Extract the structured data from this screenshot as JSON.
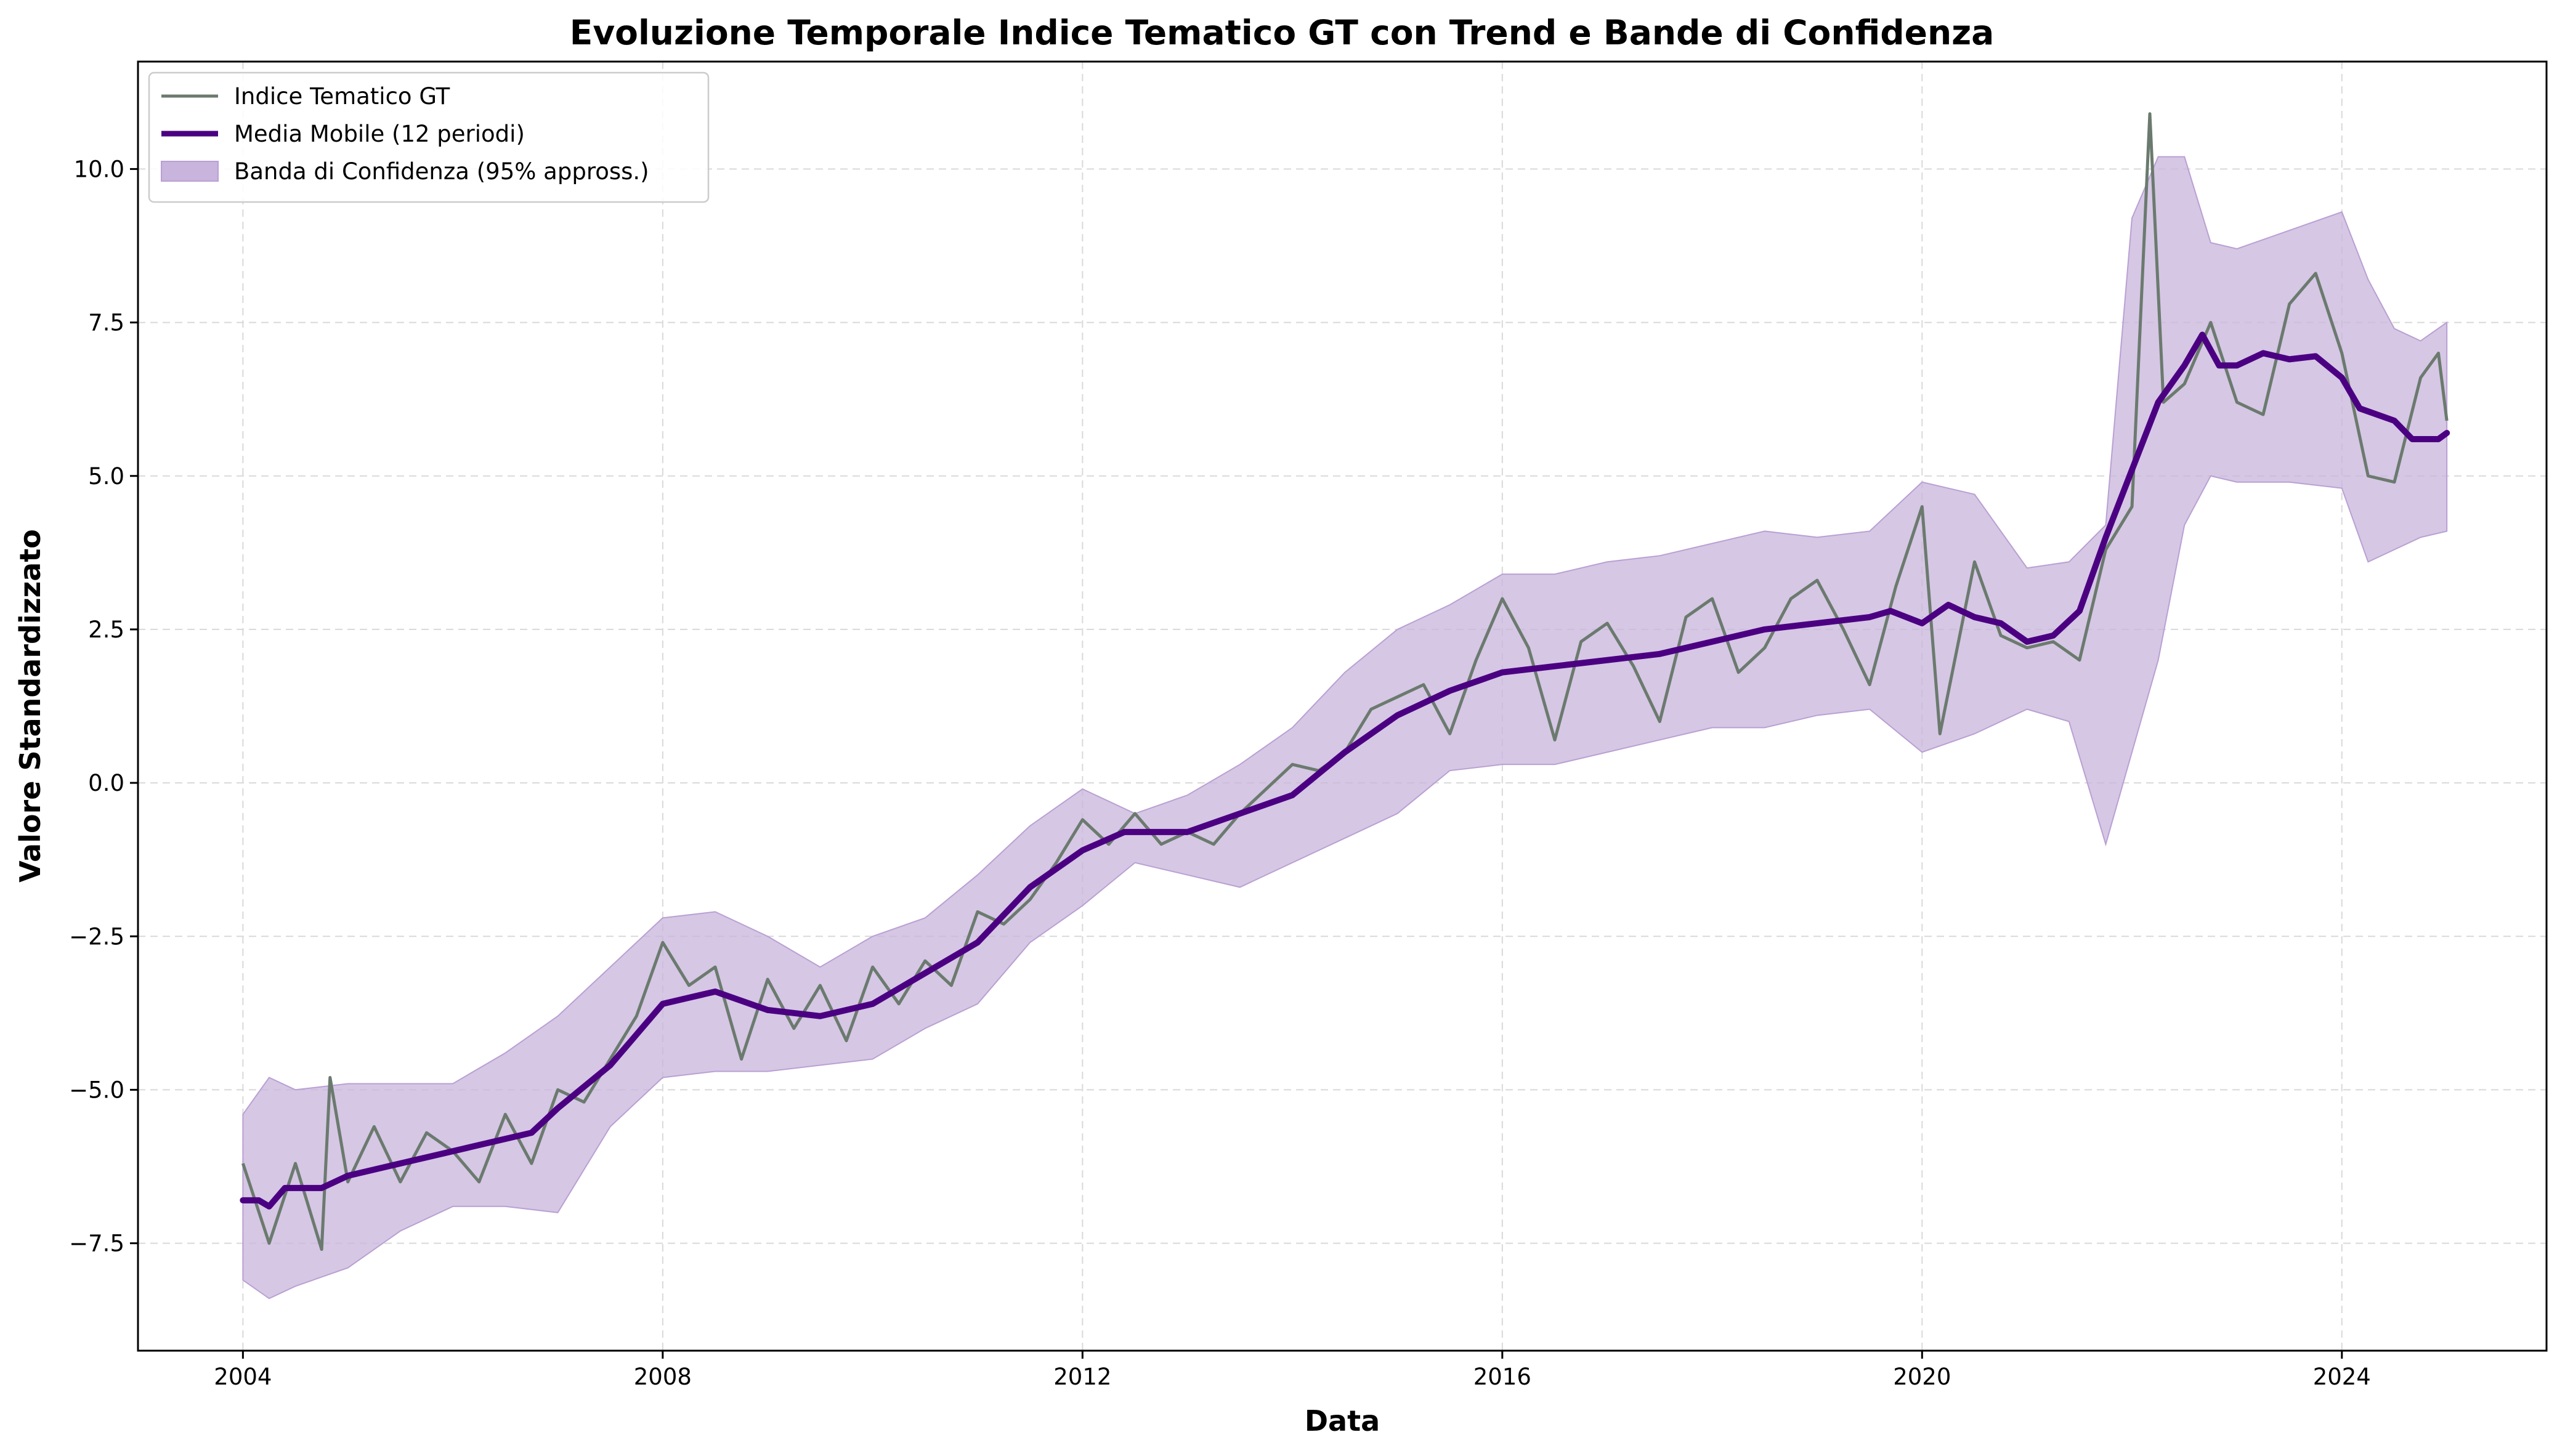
{
  "chart_data": {
    "type": "line",
    "title": "Evoluzione Temporale Indice Tematico GT con Trend e Bande di Confidenza",
    "xlabel": "Data",
    "ylabel": "Valore Standardizzato",
    "xlim": [
      2003.0,
      2025.95
    ],
    "ylim": [
      -9.25,
      11.75
    ],
    "x_ticks": [
      2004,
      2008,
      2012,
      2016,
      2020,
      2024
    ],
    "x_tick_labels": [
      "2004",
      "2008",
      "2012",
      "2016",
      "2020",
      "2024"
    ],
    "y_ticks": [
      -7.5,
      -5.0,
      -2.5,
      0.0,
      2.5,
      5.0,
      7.5,
      10.0
    ],
    "y_tick_labels": [
      "−7.5",
      "−5.0",
      "−2.5",
      "0.0",
      "2.5",
      "5.0",
      "7.5",
      "10.0"
    ],
    "grid": true,
    "legend_position": "upper-left",
    "colors": {
      "index": "#6b7a6e",
      "moving_average": "#4b0082",
      "band_fill": "#c8b4dc",
      "band_edge": "#b9a0d2",
      "grid": "#d9d9d9"
    },
    "series": [
      {
        "name": "Indice Tematico GT",
        "style": "line",
        "points": [
          [
            2004.0,
            -6.2
          ],
          [
            2004.25,
            -7.5
          ],
          [
            2004.5,
            -6.2
          ],
          [
            2004.75,
            -7.6
          ],
          [
            2004.83,
            -4.8
          ],
          [
            2005.0,
            -6.5
          ],
          [
            2005.25,
            -5.6
          ],
          [
            2005.5,
            -6.5
          ],
          [
            2005.75,
            -5.7
          ],
          [
            2006.0,
            -6.0
          ],
          [
            2006.25,
            -6.5
          ],
          [
            2006.5,
            -5.4
          ],
          [
            2006.75,
            -6.2
          ],
          [
            2007.0,
            -5.0
          ],
          [
            2007.25,
            -5.2
          ],
          [
            2007.5,
            -4.5
          ],
          [
            2007.75,
            -3.8
          ],
          [
            2008.0,
            -2.6
          ],
          [
            2008.25,
            -3.3
          ],
          [
            2008.5,
            -3.0
          ],
          [
            2008.75,
            -4.5
          ],
          [
            2009.0,
            -3.2
          ],
          [
            2009.25,
            -4.0
          ],
          [
            2009.5,
            -3.3
          ],
          [
            2009.75,
            -4.2
          ],
          [
            2010.0,
            -3.0
          ],
          [
            2010.25,
            -3.6
          ],
          [
            2010.5,
            -2.9
          ],
          [
            2010.75,
            -3.3
          ],
          [
            2011.0,
            -2.1
          ],
          [
            2011.25,
            -2.3
          ],
          [
            2011.5,
            -1.9
          ],
          [
            2011.75,
            -1.3
          ],
          [
            2012.0,
            -0.6
          ],
          [
            2012.25,
            -1.0
          ],
          [
            2012.5,
            -0.5
          ],
          [
            2012.75,
            -1.0
          ],
          [
            2013.0,
            -0.8
          ],
          [
            2013.25,
            -1.0
          ],
          [
            2013.5,
            -0.5
          ],
          [
            2013.75,
            -0.1
          ],
          [
            2014.0,
            0.3
          ],
          [
            2014.25,
            0.2
          ],
          [
            2014.5,
            0.5
          ],
          [
            2014.75,
            1.2
          ],
          [
            2015.0,
            1.4
          ],
          [
            2015.25,
            1.6
          ],
          [
            2015.5,
            0.8
          ],
          [
            2015.75,
            2.0
          ],
          [
            2016.0,
            3.0
          ],
          [
            2016.25,
            2.2
          ],
          [
            2016.5,
            0.7
          ],
          [
            2016.75,
            2.3
          ],
          [
            2017.0,
            2.6
          ],
          [
            2017.25,
            1.9
          ],
          [
            2017.5,
            1.0
          ],
          [
            2017.75,
            2.7
          ],
          [
            2018.0,
            3.0
          ],
          [
            2018.25,
            1.8
          ],
          [
            2018.5,
            2.2
          ],
          [
            2018.75,
            3.0
          ],
          [
            2019.0,
            3.3
          ],
          [
            2019.25,
            2.5
          ],
          [
            2019.5,
            1.6
          ],
          [
            2019.75,
            3.2
          ],
          [
            2020.0,
            4.5
          ],
          [
            2020.17,
            0.8
          ],
          [
            2020.5,
            3.6
          ],
          [
            2020.75,
            2.4
          ],
          [
            2021.0,
            2.2
          ],
          [
            2021.25,
            2.3
          ],
          [
            2021.5,
            2.0
          ],
          [
            2021.75,
            3.8
          ],
          [
            2022.0,
            4.5
          ],
          [
            2022.17,
            10.9
          ],
          [
            2022.3,
            6.2
          ],
          [
            2022.5,
            6.5
          ],
          [
            2022.75,
            7.5
          ],
          [
            2023.0,
            6.2
          ],
          [
            2023.25,
            6.0
          ],
          [
            2023.5,
            7.8
          ],
          [
            2023.75,
            8.3
          ],
          [
            2024.0,
            7.0
          ],
          [
            2024.25,
            5.0
          ],
          [
            2024.5,
            4.9
          ],
          [
            2024.75,
            6.6
          ],
          [
            2024.92,
            7.0
          ],
          [
            2025.0,
            5.9
          ]
        ]
      },
      {
        "name": "Media Mobile (12 periodi)",
        "style": "line",
        "points": [
          [
            2004.0,
            -6.8
          ],
          [
            2004.15,
            -6.8
          ],
          [
            2004.25,
            -6.9
          ],
          [
            2004.4,
            -6.6
          ],
          [
            2004.75,
            -6.6
          ],
          [
            2005.0,
            -6.4
          ],
          [
            2005.5,
            -6.2
          ],
          [
            2006.0,
            -6.0
          ],
          [
            2006.5,
            -5.8
          ],
          [
            2006.75,
            -5.7
          ],
          [
            2007.0,
            -5.3
          ],
          [
            2007.5,
            -4.6
          ],
          [
            2008.0,
            -3.6
          ],
          [
            2008.25,
            -3.5
          ],
          [
            2008.5,
            -3.4
          ],
          [
            2009.0,
            -3.7
          ],
          [
            2009.5,
            -3.8
          ],
          [
            2010.0,
            -3.6
          ],
          [
            2010.5,
            -3.1
          ],
          [
            2011.0,
            -2.6
          ],
          [
            2011.5,
            -1.7
          ],
          [
            2012.0,
            -1.1
          ],
          [
            2012.4,
            -0.8
          ],
          [
            2012.75,
            -0.8
          ],
          [
            2013.0,
            -0.8
          ],
          [
            2013.5,
            -0.5
          ],
          [
            2014.0,
            -0.2
          ],
          [
            2014.5,
            0.5
          ],
          [
            2015.0,
            1.1
          ],
          [
            2015.5,
            1.5
          ],
          [
            2016.0,
            1.8
          ],
          [
            2016.5,
            1.9
          ],
          [
            2017.0,
            2.0
          ],
          [
            2017.5,
            2.1
          ],
          [
            2018.0,
            2.3
          ],
          [
            2018.5,
            2.5
          ],
          [
            2019.0,
            2.6
          ],
          [
            2019.5,
            2.7
          ],
          [
            2019.7,
            2.8
          ],
          [
            2020.0,
            2.6
          ],
          [
            2020.25,
            2.9
          ],
          [
            2020.5,
            2.7
          ],
          [
            2020.75,
            2.6
          ],
          [
            2021.0,
            2.3
          ],
          [
            2021.25,
            2.4
          ],
          [
            2021.5,
            2.8
          ],
          [
            2021.75,
            4.0
          ],
          [
            2022.0,
            5.1
          ],
          [
            2022.25,
            6.2
          ],
          [
            2022.5,
            6.8
          ],
          [
            2022.67,
            7.3
          ],
          [
            2022.83,
            6.8
          ],
          [
            2023.0,
            6.8
          ],
          [
            2023.25,
            7.0
          ],
          [
            2023.5,
            6.9
          ],
          [
            2023.75,
            6.95
          ],
          [
            2024.0,
            6.6
          ],
          [
            2024.17,
            6.1
          ],
          [
            2024.5,
            5.9
          ],
          [
            2024.67,
            5.6
          ],
          [
            2024.92,
            5.6
          ],
          [
            2025.0,
            5.7
          ]
        ]
      },
      {
        "name": "Banda di Confidenza (95% appross.)",
        "style": "band",
        "x": [
          2004.0,
          2004.25,
          2004.5,
          2005.0,
          2005.5,
          2006.0,
          2006.5,
          2007.0,
          2007.5,
          2008.0,
          2008.5,
          2009.0,
          2009.5,
          2010.0,
          2010.5,
          2011.0,
          2011.5,
          2012.0,
          2012.5,
          2013.0,
          2013.5,
          2014.0,
          2014.5,
          2015.0,
          2015.5,
          2016.0,
          2016.5,
          2017.0,
          2017.5,
          2018.0,
          2018.5,
          2019.0,
          2019.5,
          2020.0,
          2020.5,
          2021.0,
          2021.4,
          2021.75,
          2022.0,
          2022.25,
          2022.5,
          2022.75,
          2023.0,
          2023.5,
          2024.0,
          2024.25,
          2024.5,
          2024.75,
          2025.0
        ],
        "upper": [
          -5.4,
          -4.8,
          -5.0,
          -4.9,
          -4.9,
          -4.9,
          -4.4,
          -3.8,
          -3.0,
          -2.2,
          -2.1,
          -2.5,
          -3.0,
          -2.5,
          -2.2,
          -1.5,
          -0.7,
          -0.1,
          -0.5,
          -0.2,
          0.3,
          0.9,
          1.8,
          2.5,
          2.9,
          3.4,
          3.4,
          3.6,
          3.7,
          3.9,
          4.1,
          4.0,
          4.1,
          4.9,
          4.7,
          3.5,
          3.6,
          4.2,
          9.2,
          10.2,
          10.2,
          8.8,
          8.7,
          9.0,
          9.3,
          8.2,
          7.4,
          7.2,
          7.5
        ],
        "lower": [
          -8.1,
          -8.4,
          -8.2,
          -7.9,
          -7.3,
          -6.9,
          -6.9,
          -7.0,
          -5.6,
          -4.8,
          -4.7,
          -4.7,
          -4.6,
          -4.5,
          -4.0,
          -3.6,
          -2.6,
          -2.0,
          -1.3,
          -1.5,
          -1.7,
          -1.3,
          -0.9,
          -0.5,
          0.2,
          0.3,
          0.3,
          0.5,
          0.7,
          0.9,
          0.9,
          1.1,
          1.2,
          0.5,
          0.8,
          1.2,
          1.0,
          -1.0,
          0.5,
          2.0,
          4.2,
          5.0,
          4.9,
          4.9,
          4.8,
          3.6,
          3.8,
          4.0,
          4.1
        ]
      }
    ]
  }
}
